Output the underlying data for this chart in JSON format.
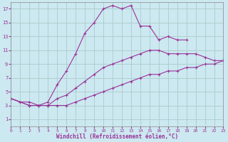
{
  "xlabel": "Windchill (Refroidissement éolien,°C)",
  "xlim": [
    0,
    23
  ],
  "ylim": [
    0,
    18
  ],
  "xticks": [
    0,
    1,
    2,
    3,
    4,
    5,
    6,
    7,
    8,
    9,
    10,
    11,
    12,
    13,
    14,
    15,
    16,
    17,
    18,
    19,
    20,
    21,
    22,
    23
  ],
  "yticks": [
    1,
    3,
    5,
    7,
    9,
    11,
    13,
    15,
    17
  ],
  "bg_color": "#cce8f0",
  "line_color": "#993399",
  "grid_color": "#aacccc",
  "series": [
    {
      "x": [
        0,
        1,
        2,
        3,
        4,
        5,
        6,
        7,
        8,
        9,
        10,
        11,
        12,
        13,
        14,
        15,
        16,
        17,
        18,
        19
      ],
      "y": [
        4,
        3.5,
        3.5,
        3,
        3.5,
        6,
        8,
        10.5,
        13.5,
        15,
        17,
        17.5,
        17,
        17.5,
        14.5,
        14.5,
        12.5,
        13,
        12.5,
        12.5
      ]
    },
    {
      "x": [
        0,
        2,
        3,
        4,
        5,
        6,
        7,
        8,
        9,
        10,
        11,
        12,
        13,
        14,
        15,
        16,
        17,
        18,
        19,
        20,
        21,
        22,
        23
      ],
      "y": [
        4,
        3,
        3,
        3,
        4,
        4.5,
        5.5,
        6.5,
        7.5,
        8.5,
        9,
        9.5,
        10,
        10.5,
        11,
        11,
        10.5,
        10.5,
        10.5,
        10.5,
        10,
        9.5,
        9.5
      ]
    },
    {
      "x": [
        0,
        2,
        3,
        4,
        5,
        6,
        7,
        8,
        9,
        10,
        11,
        12,
        13,
        14,
        15,
        16,
        17,
        18,
        19,
        20,
        21,
        22,
        23
      ],
      "y": [
        4,
        3,
        3,
        3,
        3,
        3,
        3.5,
        4,
        4.5,
        5,
        5.5,
        6,
        6.5,
        7,
        7.5,
        7.5,
        8,
        8,
        8.5,
        8.5,
        9,
        9,
        9.5
      ]
    }
  ]
}
